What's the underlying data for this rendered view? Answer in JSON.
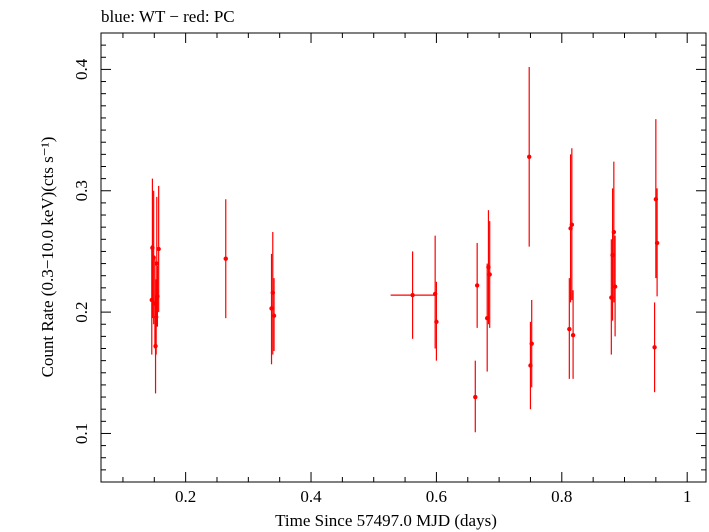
{
  "chart_data": {
    "type": "scatter",
    "title": "blue: WT − red: PC",
    "xlabel": "Time Since 57497.0 MJD (days)",
    "ylabel": "Count Rate (0.3−10.0 keV)(cts s⁻¹)",
    "xlim": [
      0.065,
      1.03
    ],
    "ylim": [
      0.06,
      0.43
    ],
    "xticks": [
      0.2,
      0.4,
      0.6,
      0.8,
      1.0
    ],
    "xtick_labels": [
      "0.2",
      "0.4",
      "0.6",
      "0.8",
      "1"
    ],
    "yticks": [
      0.1,
      0.2,
      0.3,
      0.4
    ],
    "ytick_labels": [
      "0.1",
      "0.2",
      "0.3",
      "0.4"
    ],
    "grid": false,
    "legend": "none",
    "series": [
      {
        "color": "#ff0000",
        "points": [
          {
            "x": 0.146,
            "y": 0.21,
            "ylo": 0.165,
            "yhi": 0.255
          },
          {
            "x": 0.147,
            "y": 0.253,
            "ylo": 0.195,
            "yhi": 0.31
          },
          {
            "x": 0.149,
            "y": 0.245,
            "ylo": 0.19,
            "yhi": 0.3
          },
          {
            "x": 0.151,
            "y": 0.207,
            "ylo": 0.17,
            "yhi": 0.245
          },
          {
            "x": 0.152,
            "y": 0.172,
            "ylo": 0.133,
            "yhi": 0.212
          },
          {
            "x": 0.153,
            "y": 0.196,
            "ylo": 0.165,
            "yhi": 0.227
          },
          {
            "x": 0.154,
            "y": 0.24,
            "ylo": 0.188,
            "yhi": 0.295
          },
          {
            "x": 0.155,
            "y": 0.213,
            "ylo": 0.188,
            "yhi": 0.238
          },
          {
            "x": 0.157,
            "y": 0.252,
            "ylo": 0.2,
            "yhi": 0.304
          },
          {
            "x": 0.264,
            "y": 0.244,
            "ylo": 0.195,
            "yhi": 0.293
          },
          {
            "x": 0.337,
            "y": 0.203,
            "ylo": 0.157,
            "yhi": 0.248
          },
          {
            "x": 0.339,
            "y": 0.216,
            "ylo": 0.165,
            "yhi": 0.266
          },
          {
            "x": 0.341,
            "y": 0.197,
            "ylo": 0.168,
            "yhi": 0.228
          },
          {
            "x": 0.562,
            "y": 0.214,
            "ylo": 0.178,
            "yhi": 0.25,
            "xlo": 0.527,
            "xhi": 0.598
          },
          {
            "x": 0.598,
            "y": 0.215,
            "ylo": 0.17,
            "yhi": 0.263
          },
          {
            "x": 0.6,
            "y": 0.192,
            "ylo": 0.16,
            "yhi": 0.225
          },
          {
            "x": 0.662,
            "y": 0.13,
            "ylo": 0.101,
            "yhi": 0.16
          },
          {
            "x": 0.665,
            "y": 0.222,
            "ylo": 0.187,
            "yhi": 0.257
          },
          {
            "x": 0.681,
            "y": 0.195,
            "ylo": 0.151,
            "yhi": 0.24
          },
          {
            "x": 0.683,
            "y": 0.237,
            "ylo": 0.19,
            "yhi": 0.284
          },
          {
            "x": 0.685,
            "y": 0.231,
            "ylo": 0.187,
            "yhi": 0.275
          },
          {
            "x": 0.748,
            "y": 0.328,
            "ylo": 0.254,
            "yhi": 0.402
          },
          {
            "x": 0.75,
            "y": 0.156,
            "ylo": 0.12,
            "yhi": 0.192
          },
          {
            "x": 0.752,
            "y": 0.174,
            "ylo": 0.138,
            "yhi": 0.21
          },
          {
            "x": 0.812,
            "y": 0.186,
            "ylo": 0.145,
            "yhi": 0.228
          },
          {
            "x": 0.814,
            "y": 0.269,
            "ylo": 0.208,
            "yhi": 0.33
          },
          {
            "x": 0.816,
            "y": 0.272,
            "ylo": 0.21,
            "yhi": 0.335
          },
          {
            "x": 0.818,
            "y": 0.181,
            "ylo": 0.145,
            "yhi": 0.218
          },
          {
            "x": 0.879,
            "y": 0.212,
            "ylo": 0.165,
            "yhi": 0.26
          },
          {
            "x": 0.881,
            "y": 0.247,
            "ylo": 0.193,
            "yhi": 0.302
          },
          {
            "x": 0.883,
            "y": 0.266,
            "ylo": 0.208,
            "yhi": 0.324
          },
          {
            "x": 0.885,
            "y": 0.221,
            "ylo": 0.18,
            "yhi": 0.263
          },
          {
            "x": 0.948,
            "y": 0.171,
            "ylo": 0.134,
            "yhi": 0.208
          },
          {
            "x": 0.95,
            "y": 0.293,
            "ylo": 0.228,
            "yhi": 0.359
          },
          {
            "x": 0.952,
            "y": 0.257,
            "ylo": 0.213,
            "yhi": 0.302
          }
        ]
      }
    ]
  }
}
